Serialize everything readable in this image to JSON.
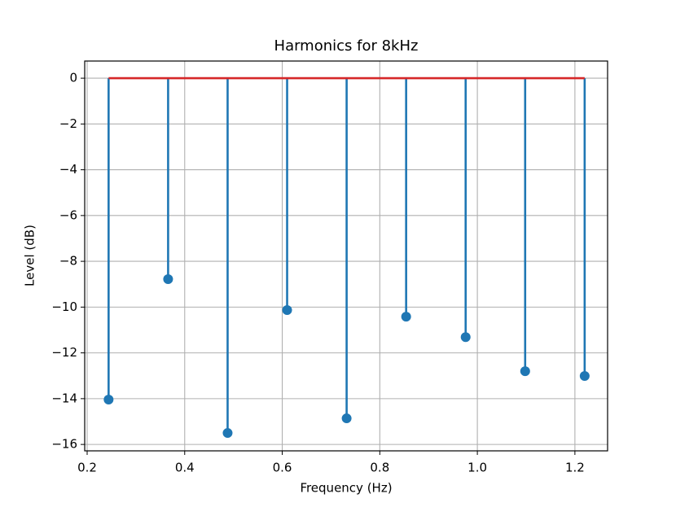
{
  "chart_data": {
    "type": "stem",
    "title": "Harmonics for 8kHz",
    "x_label": "Frequency (Hz)",
    "y_label": "Level (dB)",
    "x": [
      0.244,
      0.366,
      0.488,
      0.61,
      0.732,
      0.854,
      0.976,
      1.098,
      1.22
    ],
    "series": [
      {
        "color": "#1f77b4",
        "values": [
          -14.04,
          -8.78,
          -15.5,
          -10.13,
          -14.86,
          -10.42,
          -11.31,
          -12.8,
          -13.01
        ]
      }
    ],
    "baseline_color": "#d62728",
    "xlim": [
      0.195,
      1.267
    ],
    "ylim": [
      -16.28,
      0.75
    ],
    "xticks": [
      0.2,
      0.4,
      0.6,
      0.8,
      {
        "value": 1,
        "label": "1.0"
      },
      1.2
    ],
    "yticks": [
      0,
      {
        "value": -2,
        "label": "−2"
      },
      {
        "value": -4,
        "label": "−4"
      },
      {
        "value": -6,
        "label": "−6"
      },
      {
        "value": -8,
        "label": "−8"
      },
      {
        "value": -10,
        "label": "−10"
      },
      {
        "value": -12,
        "label": "−12"
      },
      {
        "value": -14,
        "label": "−14"
      },
      {
        "value": -16,
        "label": "−16"
      }
    ],
    "grid": true
  }
}
